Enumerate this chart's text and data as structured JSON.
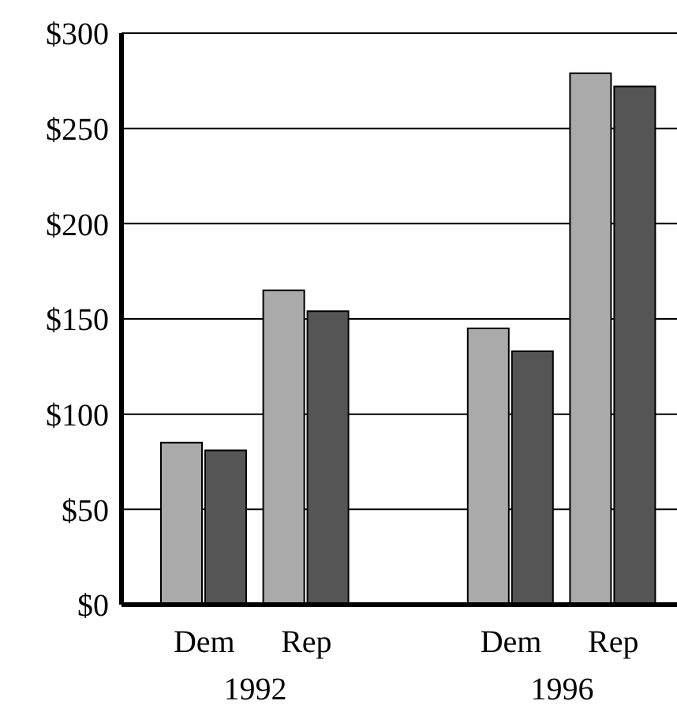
{
  "chart_data": {
    "type": "bar",
    "categories": [
      "Dem",
      "Rep",
      null,
      "Dem",
      "Rep"
    ],
    "series": [
      {
        "color": "#aaaaaa",
        "values": [
          85,
          165,
          null,
          145,
          279
        ]
      },
      {
        "color": "#555555",
        "values": [
          81,
          154,
          null,
          133,
          272
        ]
      }
    ],
    "ylim": [
      0,
      300
    ],
    "yticks": [
      {
        "value": 0,
        "label": "$0"
      },
      {
        "value": 50,
        "label": "$50"
      },
      {
        "value": 100,
        "label": "$100"
      },
      {
        "value": 150,
        "label": "$150"
      },
      {
        "value": 200,
        "label": "$200"
      },
      {
        "value": 250,
        "label": "$250"
      },
      {
        "value": 300,
        "label": "$300"
      }
    ],
    "grid": "y",
    "legend": false,
    "annotations": [
      "1992",
      "1996"
    ]
  }
}
